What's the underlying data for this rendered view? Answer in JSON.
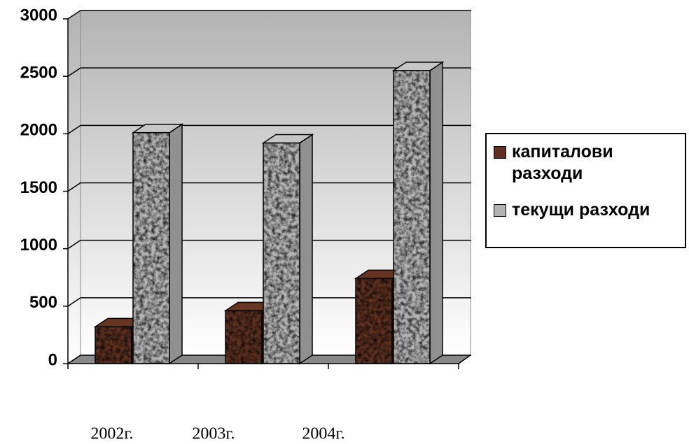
{
  "chart_data": {
    "type": "bar3d",
    "categories": [
      "2002г.",
      "2003г.",
      "2004г."
    ],
    "series": [
      {
        "name": "капиталови разходи",
        "color": "#5c2f20",
        "values": [
          320,
          460,
          740
        ]
      },
      {
        "name": "текущи разходи",
        "color": "#b4b4b4",
        "values": [
          2010,
          1920,
          2550
        ]
      }
    ],
    "ylim": [
      0,
      3000
    ],
    "yticks": [
      0,
      500,
      1000,
      1500,
      2000,
      2500,
      3000
    ],
    "grid": true,
    "legend": "right"
  }
}
